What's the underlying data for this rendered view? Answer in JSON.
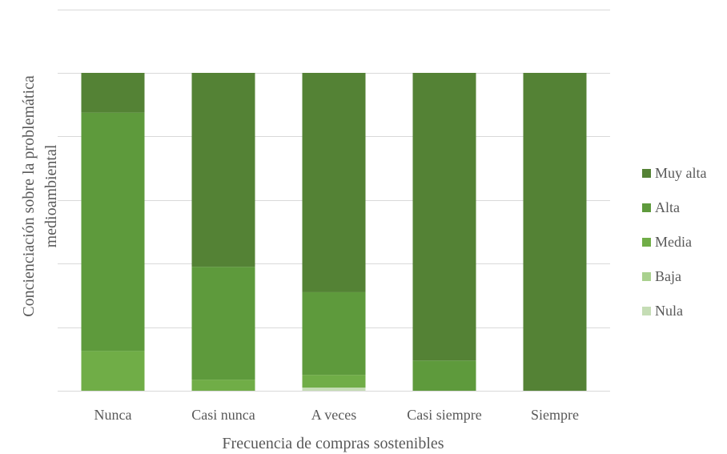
{
  "chart_data": {
    "type": "bar",
    "stacked": true,
    "normalized": true,
    "title": "",
    "xlabel": "Frecuencia de compras sostenibles",
    "ylabel": "Concienciación sobre la problemática medioambiental",
    "ylabel_lines": [
      "Concienciación sobre la problemática",
      "medioambiental"
    ],
    "ylim": [
      0,
      100
    ],
    "grid": true,
    "legend_position": "right",
    "categories": [
      "Nunca",
      "Casi nunca",
      "A veces",
      "Casi siempre",
      "Siempre"
    ],
    "series": [
      {
        "name": "Nula",
        "color": "#C5DDB5",
        "values": [
          0,
          0,
          1,
          0,
          0
        ]
      },
      {
        "name": "Baja",
        "color": "#A9D18E",
        "values": [
          0,
          0,
          0,
          0,
          0
        ]
      },
      {
        "name": "Media",
        "color": "#70AD47",
        "values": [
          12.5,
          3.5,
          4,
          0,
          0
        ]
      },
      {
        "name": "Alta",
        "color": "#5E9A3C",
        "values": [
          75,
          35.5,
          26,
          9.5,
          0
        ]
      },
      {
        "name": "Muy alta",
        "color": "#548235",
        "values": [
          12.5,
          61,
          69,
          90.5,
          100
        ]
      }
    ],
    "legend_order": [
      "Muy alta",
      "Alta",
      "Media",
      "Baja",
      "Nula"
    ]
  }
}
